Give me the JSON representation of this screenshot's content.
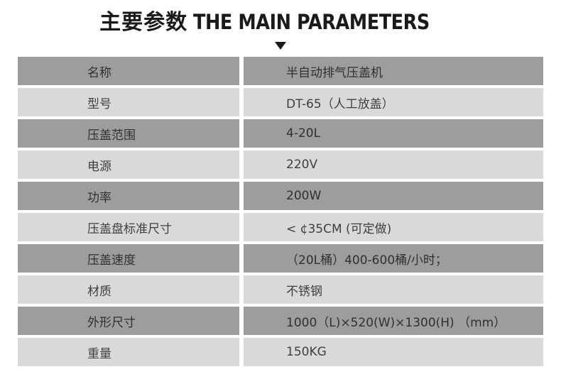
{
  "title": {
    "zh": "主要参数",
    "en": "THE MAIN PARAMETERS"
  },
  "colors": {
    "background": "#ffffff",
    "title_text": "#1a1a1a",
    "row_dark": "#9d9d9d",
    "row_light": "#d9d9d9",
    "cell_text": "#3f3f3f",
    "cell_text_dark": "#303030"
  },
  "icons": {
    "down_triangle": "▼"
  },
  "table": {
    "rows": [
      {
        "label": "名称",
        "value": "半自动排气压盖机"
      },
      {
        "label": "型号",
        "value": "DT-65（人工放盖）"
      },
      {
        "label": "压盖范围",
        "value": "4-20L"
      },
      {
        "label": "电源",
        "value": "220V"
      },
      {
        "label": "功率",
        "value": "200W"
      },
      {
        "label": "压盖盘标准尺寸",
        "value": "< ¢35CM (可定做)"
      },
      {
        "label": "压盖速度",
        "value": "（20L桶）400-600桶/小时；"
      },
      {
        "label": "材质",
        "value": "不锈钢"
      },
      {
        "label": "外形尺寸",
        "value": "1000（L)×520(W)×1300(H) （mm）"
      },
      {
        "label": "重量",
        "value": "150KG"
      }
    ]
  }
}
